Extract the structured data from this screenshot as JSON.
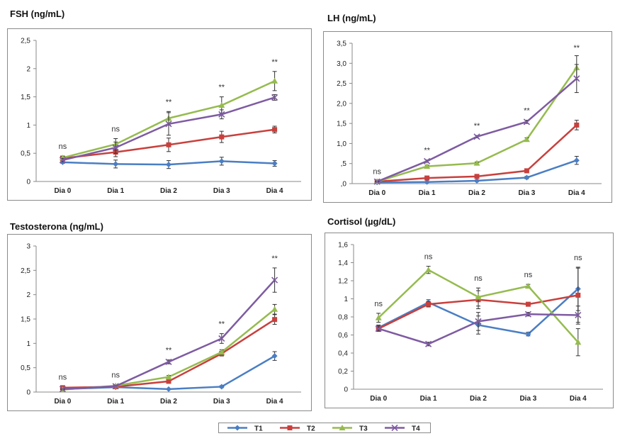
{
  "legend": {
    "items": [
      {
        "name": "T1",
        "color": "#4a7ec4",
        "marker": "diamond"
      },
      {
        "name": "T2",
        "color": "#c8403d",
        "marker": "square"
      },
      {
        "name": "T3",
        "color": "#95bb4e",
        "marker": "triangle"
      },
      {
        "name": "T4",
        "color": "#7e5ba2",
        "marker": "x"
      }
    ]
  },
  "chart_data": [
    {
      "type": "line",
      "title": "FSH (ng/mL)",
      "categories": [
        "Dia  0",
        "Dia  1",
        "Dia  2",
        "Dia  3",
        "Dia  4"
      ],
      "ylim": [
        0,
        2.5
      ],
      "yticks": [
        "0",
        "0,5",
        "1",
        "1,5",
        "2",
        "2,5"
      ],
      "ytick_values": [
        0,
        0.5,
        1,
        1.5,
        2,
        2.5
      ],
      "significance": [
        "ns",
        "ns",
        "**",
        "**",
        "**"
      ],
      "series": [
        {
          "name": "T1",
          "values": [
            0.34,
            0.31,
            0.3,
            0.36,
            0.32
          ],
          "err": [
            0.02,
            0.07,
            0.07,
            0.07,
            0.05
          ]
        },
        {
          "name": "T2",
          "values": [
            0.41,
            0.52,
            0.65,
            0.79,
            0.92
          ],
          "err": [
            0.04,
            0.08,
            0.12,
            0.1,
            0.06
          ]
        },
        {
          "name": "T3",
          "values": [
            0.42,
            0.66,
            1.12,
            1.35,
            1.78
          ],
          "err": [
            0.03,
            0.1,
            0.12,
            0.15,
            0.17
          ]
        },
        {
          "name": "T4",
          "values": [
            0.38,
            0.6,
            1.02,
            1.19,
            1.49
          ],
          "err": [
            0.03,
            0.1,
            0.2,
            0.08,
            0.05
          ]
        }
      ]
    },
    {
      "type": "line",
      "title": "LH (ng/mL)",
      "categories": [
        "Dia  0",
        "Dia  1",
        "Dia  2",
        "Dia  3",
        "Dia  4"
      ],
      "ylim": [
        0,
        3.5
      ],
      "yticks": [
        ",0",
        ",5",
        "1,0",
        "1,5",
        "2,0",
        "2,5",
        "3,0",
        "3,5"
      ],
      "ytick_values": [
        0,
        0.5,
        1,
        1.5,
        2,
        2.5,
        3,
        3.5
      ],
      "significance": [
        "ns",
        "**",
        "**",
        "**",
        "**"
      ],
      "series": [
        {
          "name": "T1",
          "values": [
            0.03,
            0.04,
            0.07,
            0.15,
            0.58
          ],
          "err": [
            0.01,
            0.01,
            0.02,
            0.03,
            0.1
          ]
        },
        {
          "name": "T2",
          "values": [
            0.05,
            0.14,
            0.18,
            0.32,
            1.46
          ],
          "err": [
            0.01,
            0.02,
            0.02,
            0.03,
            0.12
          ]
        },
        {
          "name": "T3",
          "values": [
            0.05,
            0.43,
            0.51,
            1.1,
            2.89
          ],
          "err": [
            0.01,
            0.03,
            0.03,
            0.04,
            0.3
          ]
        },
        {
          "name": "T4",
          "values": [
            0.05,
            0.56,
            1.17,
            1.54,
            2.62
          ],
          "err": [
            0.01,
            0.03,
            0.03,
            0.04,
            0.35
          ]
        }
      ]
    },
    {
      "type": "line",
      "title": "Testosterona (ng/mL)",
      "categories": [
        "Dia  0",
        "Dia  1",
        "Dia  2",
        "Dia  3",
        "Dia  4"
      ],
      "ylim": [
        0,
        3
      ],
      "yticks": [
        "0",
        "0,5",
        "1",
        "1,5",
        "2",
        "2,5",
        "3"
      ],
      "ytick_values": [
        0,
        0.5,
        1,
        1.5,
        2,
        2.5,
        3
      ],
      "significance": [
        "ns",
        "ns",
        "**",
        "**",
        "**"
      ],
      "series": [
        {
          "name": "T1",
          "values": [
            0.06,
            0.1,
            0.06,
            0.11,
            0.74
          ],
          "err": [
            0.01,
            0.01,
            0.01,
            0.02,
            0.09
          ]
        },
        {
          "name": "T2",
          "values": [
            0.09,
            0.11,
            0.22,
            0.79,
            1.49
          ],
          "err": [
            0.02,
            0.02,
            0.03,
            0.05,
            0.1
          ]
        },
        {
          "name": "T3",
          "values": [
            0.05,
            0.13,
            0.31,
            0.82,
            1.7
          ],
          "err": [
            0.01,
            0.02,
            0.03,
            0.05,
            0.1
          ]
        },
        {
          "name": "T4",
          "values": [
            0.06,
            0.12,
            0.62,
            1.1,
            2.3
          ],
          "err": [
            0.01,
            0.02,
            0.04,
            0.1,
            0.25
          ]
        }
      ]
    },
    {
      "type": "line",
      "title": "Cortisol (µg/dL)",
      "categories": [
        "Dia  0",
        "Dia  1",
        "Dia  2",
        "Dia  3",
        "Dia  4"
      ],
      "ylim": [
        0,
        1.6
      ],
      "yticks": [
        "0",
        "0,2",
        "0,4",
        "0,6",
        "0,8",
        "1",
        "1,2",
        "1,4",
        "1,6"
      ],
      "ytick_values": [
        0,
        0.2,
        0.4,
        0.6,
        0.8,
        1,
        1.2,
        1.4,
        1.6
      ],
      "significance": [
        "ns",
        "ns",
        "ns",
        "ns",
        "ns"
      ],
      "series": [
        {
          "name": "T1",
          "values": [
            0.68,
            0.96,
            0.71,
            0.61,
            1.11
          ],
          "err": [
            0.03,
            0.03,
            0.1,
            0.02,
            0.24
          ]
        },
        {
          "name": "T2",
          "values": [
            0.67,
            0.94,
            0.99,
            0.94,
            1.04
          ],
          "err": [
            0.03,
            0.03,
            0.1,
            0.02,
            0.3
          ]
        },
        {
          "name": "T3",
          "values": [
            0.79,
            1.32,
            1.02,
            1.14,
            0.52
          ],
          "err": [
            0.05,
            0.04,
            0.1,
            0.02,
            0.15
          ]
        },
        {
          "name": "T4",
          "values": [
            0.67,
            0.5,
            0.75,
            0.83,
            0.82
          ],
          "err": [
            0.02,
            0.02,
            0.1,
            0.02,
            0.1
          ]
        }
      ]
    }
  ]
}
